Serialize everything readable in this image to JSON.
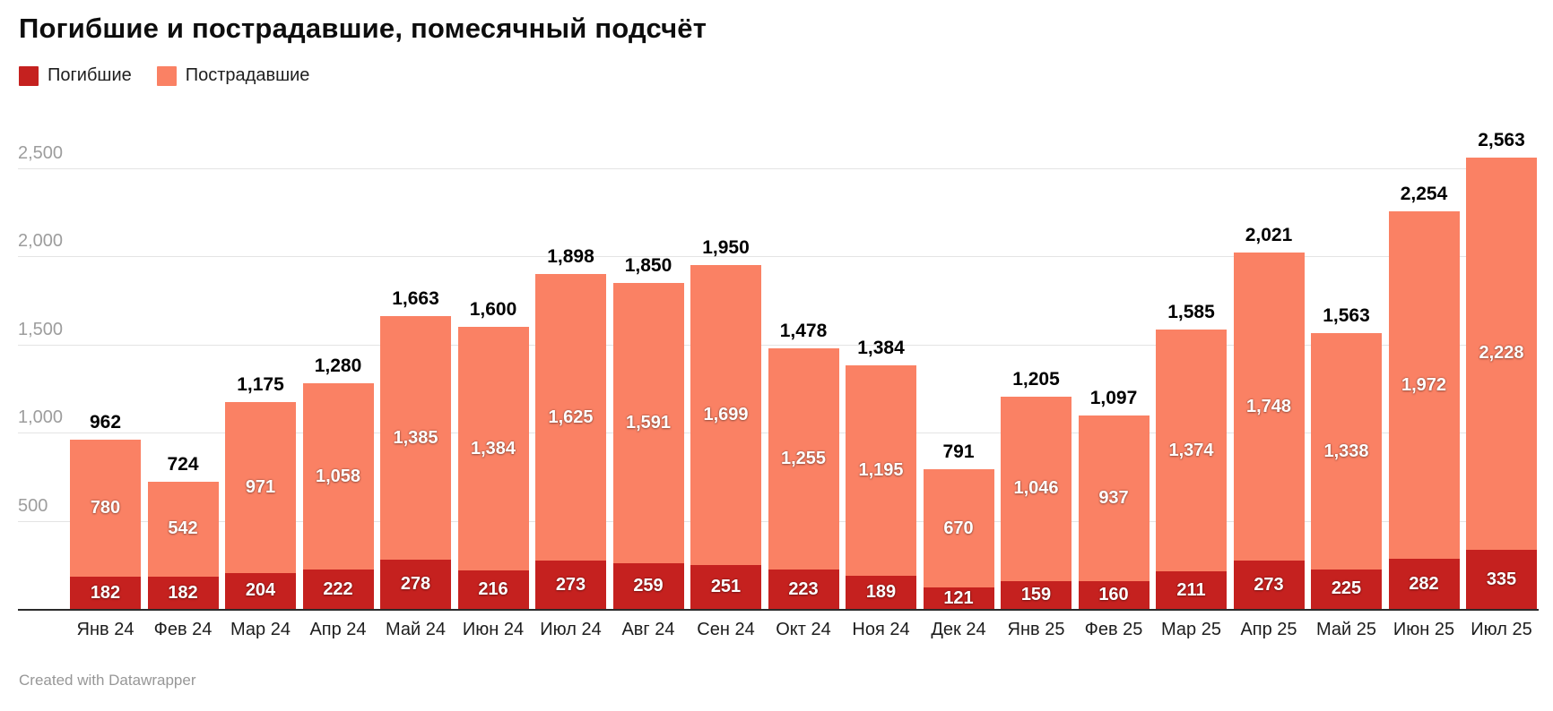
{
  "title": "Погибшие и пострадавшие, помесячный подсчёт",
  "legend": [
    {
      "label": "Погибшие",
      "color": "#c5211f"
    },
    {
      "label": "Пострадавшие",
      "color": "#fa8164"
    }
  ],
  "footer": "Created with Datawrapper",
  "colors": {
    "fatalities": "#c5211f",
    "injured": "#fa8164",
    "gridline": "#e4e4e4",
    "axis": "#2b2b2b",
    "ytick_text": "#9d9d9d"
  },
  "chart_data": {
    "type": "bar",
    "stacked": true,
    "title": "Погибшие и пострадавшие, помесячный подсчёт",
    "xlabel": "",
    "ylabel": "",
    "ylim": [
      0,
      2563
    ],
    "y_ticks": [
      500,
      1000,
      1500,
      2000,
      2500
    ],
    "y_tick_labels": [
      "500",
      "1,000",
      "1,500",
      "2,000",
      "2,500"
    ],
    "grid": "horizontal",
    "legend_position": "top-left",
    "categories": [
      "Янв 24",
      "Фев 24",
      "Мар 24",
      "Апр 24",
      "Май 24",
      "Июн 24",
      "Июл 24",
      "Авг 24",
      "Сен 24",
      "Окт 24",
      "Ноя 24",
      "Дек 24",
      "Янв 25",
      "Фев 25",
      "Мар 25",
      "Апр 25",
      "Май 25",
      "Июн 25",
      "Июл 25"
    ],
    "series": [
      {
        "name": "Погибшие",
        "color": "#c5211f",
        "values": [
          182,
          182,
          204,
          222,
          278,
          216,
          273,
          259,
          251,
          223,
          189,
          121,
          159,
          160,
          211,
          273,
          225,
          282,
          335
        ]
      },
      {
        "name": "Пострадавшие",
        "color": "#fa8164",
        "values": [
          780,
          542,
          971,
          1058,
          1385,
          1384,
          1625,
          1591,
          1699,
          1255,
          1195,
          670,
          1046,
          937,
          1374,
          1748,
          1338,
          1972,
          2228
        ]
      }
    ],
    "totals": [
      962,
      724,
      1175,
      1280,
      1663,
      1600,
      1898,
      1850,
      1950,
      1478,
      1384,
      791,
      1205,
      1097,
      1585,
      2021,
      1563,
      2254,
      2563
    ]
  }
}
